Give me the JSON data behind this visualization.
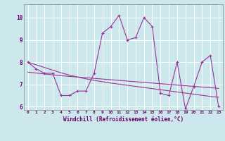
{
  "xlabel": "Windchill (Refroidissement éolien,°C)",
  "ylabel": "",
  "x": [
    0,
    1,
    2,
    3,
    4,
    5,
    6,
    7,
    8,
    9,
    10,
    11,
    12,
    13,
    14,
    15,
    16,
    17,
    18,
    19,
    20,
    21,
    22,
    23
  ],
  "y_line": [
    8.0,
    7.7,
    7.5,
    7.5,
    6.5,
    6.5,
    6.7,
    6.7,
    7.5,
    9.3,
    9.6,
    10.1,
    9.0,
    9.1,
    10.0,
    9.6,
    6.6,
    6.5,
    8.0,
    5.9,
    6.9,
    8.0,
    8.3,
    6.0
  ],
  "y_trend1": [
    8.0,
    7.88,
    7.76,
    7.64,
    7.52,
    7.42,
    7.33,
    7.25,
    7.18,
    7.12,
    7.06,
    7.01,
    6.96,
    6.91,
    6.86,
    6.81,
    6.76,
    6.71,
    6.66,
    6.61,
    6.56,
    6.51,
    6.46,
    6.42
  ],
  "y_trend2": [
    7.55,
    7.51,
    7.47,
    7.43,
    7.39,
    7.36,
    7.33,
    7.3,
    7.27,
    7.24,
    7.21,
    7.18,
    7.15,
    7.12,
    7.09,
    7.06,
    7.03,
    7.0,
    6.97,
    6.94,
    6.91,
    6.88,
    6.85,
    6.82
  ],
  "line_color": "#993399",
  "bg_color": "#cce8ec",
  "grid_color": "#ffffff",
  "text_color": "#660066",
  "ylim": [
    5.85,
    10.6
  ],
  "yticks": [
    6,
    7,
    8,
    9,
    10
  ],
  "xlim": [
    -0.5,
    23.5
  ]
}
